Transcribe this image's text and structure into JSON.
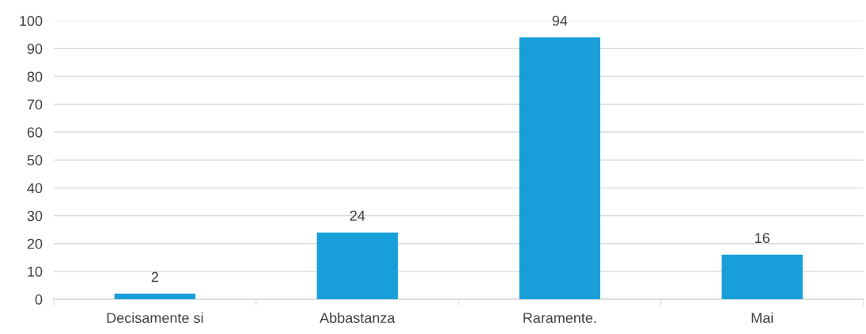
{
  "chart_data": {
    "type": "bar",
    "categories": [
      "Decisamente si",
      "Abbastanza",
      "Raramente.",
      "Mai"
    ],
    "values": [
      2,
      24,
      94,
      16
    ],
    "color": "#189fd9",
    "ylim": [
      0,
      100
    ],
    "yticks": [
      0,
      10,
      20,
      30,
      40,
      50,
      60,
      70,
      80,
      90,
      100
    ],
    "grid": "y",
    "data_labels": true
  }
}
